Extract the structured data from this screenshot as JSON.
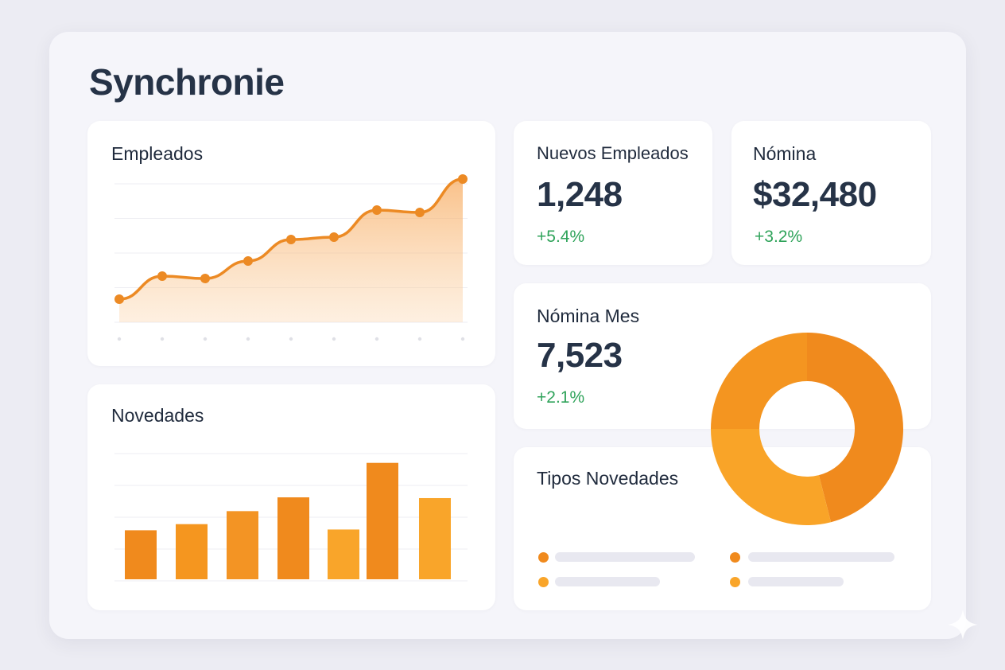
{
  "app": {
    "title": "Synchronie"
  },
  "cards": {
    "empleados": {
      "title": "Empleados"
    },
    "novedades": {
      "title": "Novedades"
    },
    "nuevos_empleados": {
      "title": "Nuevos Empleados",
      "value": "1,248",
      "delta": "+5.4%"
    },
    "nomina": {
      "title": "Nómina",
      "value": "$32,480",
      "delta": "+3.2%"
    },
    "nomina_mes": {
      "title": "Nómina Mes",
      "value": "7,523",
      "delta": "+2.1%"
    },
    "tipos_novedades": {
      "title": "Tipos Novedades"
    }
  },
  "colors": {
    "accent": "#ef8a1c",
    "accent_light": "#f9a52a",
    "positive": "#2fa35a",
    "text": "#263347",
    "placeholder": "#e8e8f0"
  },
  "chart_data": [
    {
      "type": "area",
      "x": [
        1,
        2,
        3,
        4,
        5,
        6,
        7,
        8,
        9
      ],
      "series": [
        {
          "values": [
            29,
            58,
            55,
            77,
            104,
            107,
            141,
            138,
            180
          ]
        }
      ],
      "ylim": [
        0,
        200
      ],
      "grid": true
    },
    {
      "type": "bar",
      "categories": [
        "1",
        "2",
        "3",
        "4",
        "5",
        "6",
        "7"
      ],
      "values": [
        64,
        72,
        89,
        107,
        65,
        152,
        106
      ],
      "ylim": [
        0,
        160
      ],
      "grid": true
    },
    {
      "type": "pie",
      "slices": [
        {
          "value": 46,
          "color": "#f08a1d"
        },
        {
          "value": 29,
          "color": "#f9a428"
        },
        {
          "value": 25,
          "color": "#f49520"
        }
      ]
    }
  ],
  "icons": {
    "corner": "sparkle-icon"
  }
}
